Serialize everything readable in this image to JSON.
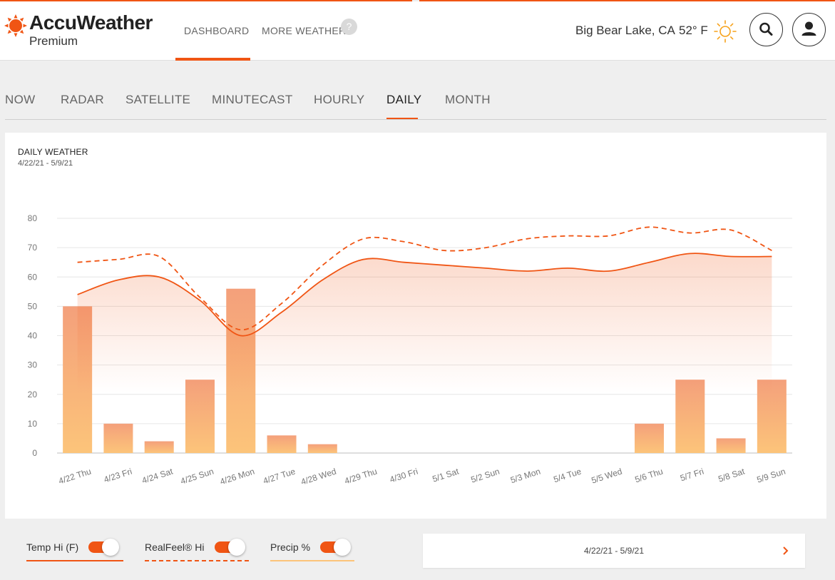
{
  "app": {
    "brand": "AccuWeather",
    "tier": "Premium",
    "brand_color": "#f05514"
  },
  "nav": {
    "dashboard": "DASHBOARD",
    "more_weather": "MORE WEATHER",
    "help": "?"
  },
  "header": {
    "location": "Big Bear Lake, CA",
    "temperature": "52° F",
    "condition_icon": "sun-icon",
    "search_icon": "search-icon",
    "account_icon": "user-icon"
  },
  "tabs": [
    {
      "label": "NOW",
      "active": false
    },
    {
      "label": "RADAR",
      "active": false
    },
    {
      "label": "SATELLITE",
      "active": false
    },
    {
      "label": "MINUTECAST",
      "active": false
    },
    {
      "label": "HOURLY",
      "active": false
    },
    {
      "label": "DAILY",
      "active": true
    },
    {
      "label": "MONTH",
      "active": false
    }
  ],
  "panel": {
    "title": "DAILY WEATHER",
    "date_range": "4/22/21 - 5/9/21"
  },
  "chart_data": {
    "type": "bar",
    "title": "DAILY WEATHER",
    "subtitle": "4/22/21 - 5/9/21",
    "categories": [
      "4/22 Thu",
      "4/23 Fri",
      "4/24 Sat",
      "4/25 Sun",
      "4/26 Mon",
      "4/27 Tue",
      "4/28 Wed",
      "4/29 Thu",
      "4/30 Fri",
      "5/1 Sat",
      "5/2 Sun",
      "5/3 Mon",
      "5/4 Tue",
      "5/5 Wed",
      "5/6 Thu",
      "5/7 Fri",
      "5/8 Sat",
      "5/9 Sun"
    ],
    "yticks": [
      0,
      10,
      20,
      30,
      40,
      50,
      60,
      70,
      80
    ],
    "ylim": [
      0,
      80
    ],
    "grid": true,
    "series": [
      {
        "name": "Precip %",
        "kind": "bar",
        "values": [
          50,
          10,
          4,
          25,
          56,
          6,
          3,
          0,
          0,
          0,
          0,
          0,
          0,
          0,
          10,
          25,
          5,
          25
        ]
      },
      {
        "name": "Temp Hi (F)",
        "kind": "line",
        "values": [
          54,
          59,
          60,
          52,
          40,
          48,
          59,
          66,
          65,
          64,
          63,
          62,
          63,
          62,
          65,
          68,
          67,
          67
        ]
      },
      {
        "name": "RealFeel® Hi",
        "kind": "dashed-line",
        "values": [
          65,
          66,
          67,
          53,
          42,
          51,
          64,
          73,
          72,
          69,
          70,
          73,
          74,
          74,
          77,
          75,
          76,
          69
        ]
      }
    ],
    "colors": {
      "line": "#f05514",
      "bar_top": "#f4a07b",
      "bar_bottom": "#fcc47a",
      "grid": "#e6e6e6",
      "axis_text": "#777777"
    }
  },
  "legend": {
    "temp_hi": "Temp Hi (F)",
    "realfeel_hi": "RealFeel® Hi",
    "precip": "Precip %",
    "temp_hi_on": true,
    "realfeel_hi_on": true,
    "precip_on": true,
    "precip_color": "#fcc47a"
  },
  "range_selector": {
    "label": "4/22/21 - 5/9/21",
    "next_icon": "chevron-right-icon"
  }
}
